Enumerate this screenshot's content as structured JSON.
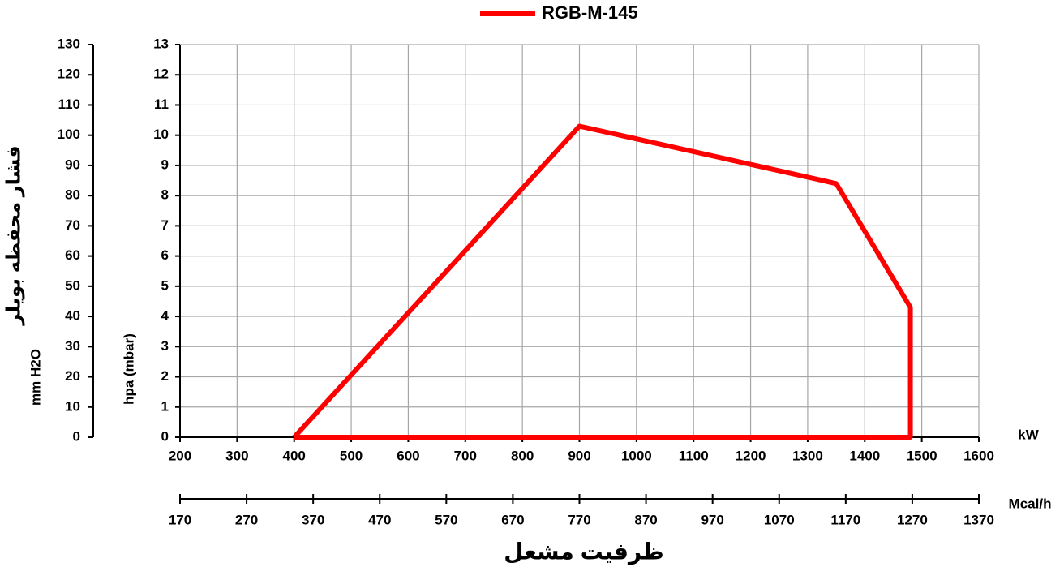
{
  "chart_data": {
    "type": "line",
    "series": [
      {
        "name": "RGB-M-145",
        "color": "#ff0000",
        "x": [
          400,
          900,
          1350,
          1480,
          1480,
          400
        ],
        "values": [
          0,
          10.3,
          8.4,
          4.3,
          0,
          0
        ]
      }
    ],
    "xlim": [
      200,
      1600
    ],
    "xticks": [
      200,
      300,
      400,
      500,
      600,
      700,
      800,
      900,
      1000,
      1100,
      1200,
      1300,
      1400,
      1500,
      1600
    ],
    "x_label": "kW",
    "ylim": [
      0,
      13
    ],
    "yticks": [
      0,
      1,
      2,
      3,
      4,
      5,
      6,
      7,
      8,
      9,
      10,
      11,
      12,
      13
    ],
    "y_label": "hpa (mbar)",
    "y2lim": [
      0,
      130
    ],
    "y2ticks": [
      0,
      10,
      20,
      30,
      40,
      50,
      60,
      70,
      80,
      90,
      100,
      110,
      120,
      130
    ],
    "y2_label": "mm H2O",
    "x2lim": [
      170,
      1370
    ],
    "x2ticks": [
      170,
      270,
      370,
      470,
      570,
      670,
      770,
      870,
      970,
      1070,
      1170,
      1270,
      1370
    ],
    "x2_label": "Mcal/h",
    "y_title": "فشار محفظه بویلر",
    "x_title": "ظرفیت مشعل",
    "grid": true,
    "legend": "top"
  }
}
